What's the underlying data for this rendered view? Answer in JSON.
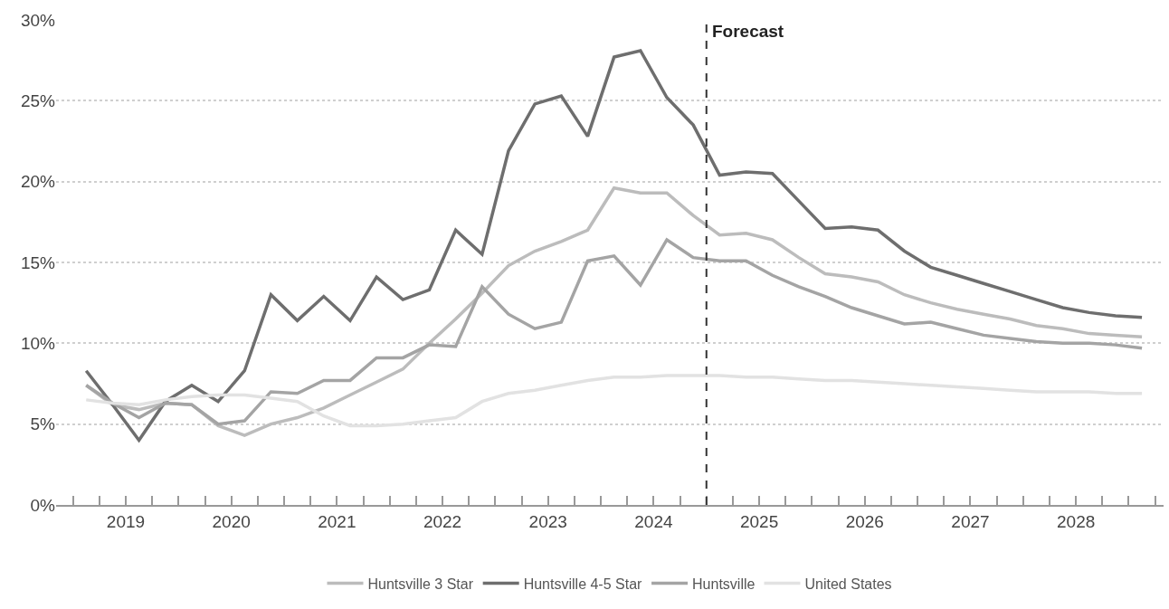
{
  "chart_data": {
    "type": "line",
    "x": [
      2019.125,
      2019.375,
      2019.625,
      2019.875,
      2020.125,
      2020.375,
      2020.625,
      2020.875,
      2021.125,
      2021.375,
      2021.625,
      2021.875,
      2022.125,
      2022.375,
      2022.625,
      2022.875,
      2023.125,
      2023.375,
      2023.625,
      2023.875,
      2024.125,
      2024.375,
      2024.625,
      2024.875,
      2025.125,
      2025.375,
      2025.625,
      2025.875,
      2026.125,
      2026.375,
      2026.625,
      2026.875,
      2027.125,
      2027.375,
      2027.625,
      2027.875,
      2028.125,
      2028.375,
      2028.625,
      2028.875,
      2029.125
    ],
    "series": [
      {
        "name": "Huntsville 3 Star",
        "color": "#bcbcbc",
        "values": [
          7.4,
          6.2,
          5.9,
          6.3,
          6.2,
          4.9,
          4.3,
          5.0,
          5.4,
          6.0,
          6.8,
          7.6,
          8.4,
          10.0,
          11.5,
          13.1,
          14.8,
          15.7,
          16.3,
          17.0,
          19.6,
          19.3,
          19.3,
          17.9,
          16.7,
          16.8,
          16.4,
          15.3,
          14.3,
          14.1,
          13.8,
          13.0,
          12.5,
          12.1,
          11.8,
          11.5,
          11.1,
          10.9,
          10.6,
          10.5,
          10.4
        ]
      },
      {
        "name": "Huntsville 4-5 Star",
        "color": "#6e6e6e",
        "values": [
          8.3,
          6.2,
          4.0,
          6.4,
          7.4,
          6.4,
          8.3,
          13.0,
          11.4,
          12.9,
          11.4,
          14.1,
          12.7,
          13.3,
          17.0,
          15.5,
          21.9,
          24.8,
          25.3,
          22.8,
          27.7,
          28.1,
          25.2,
          23.5,
          20.4,
          20.6,
          20.5,
          18.8,
          17.1,
          17.2,
          17.0,
          15.7,
          14.7,
          14.2,
          13.7,
          13.2,
          12.7,
          12.2,
          11.9,
          11.7,
          11.6
        ]
      },
      {
        "name": "Huntsville",
        "color": "#a4a4a4",
        "values": [
          7.4,
          6.3,
          5.4,
          6.3,
          6.2,
          5.0,
          5.2,
          7.0,
          6.9,
          7.7,
          7.7,
          9.1,
          9.1,
          9.9,
          9.8,
          13.5,
          11.8,
          10.9,
          11.3,
          15.1,
          15.4,
          13.6,
          16.4,
          15.3,
          15.1,
          15.1,
          14.2,
          13.5,
          12.9,
          12.2,
          11.7,
          11.2,
          11.3,
          10.9,
          10.5,
          10.3,
          10.1,
          10.0,
          10.0,
          9.9,
          9.7
        ]
      },
      {
        "name": "United States",
        "color": "#e2e2e2",
        "values": [
          6.5,
          6.3,
          6.2,
          6.5,
          6.7,
          6.8,
          6.8,
          6.6,
          6.4,
          5.5,
          4.9,
          4.9,
          5.0,
          5.2,
          5.4,
          6.4,
          6.9,
          7.1,
          7.4,
          7.7,
          7.9,
          7.9,
          8.0,
          8.0,
          8.0,
          7.9,
          7.9,
          7.8,
          7.7,
          7.7,
          7.6,
          7.5,
          7.4,
          7.3,
          7.2,
          7.1,
          7.0,
          7.0,
          7.0,
          6.9,
          6.9
        ]
      }
    ],
    "xlim": [
      2018.84,
      2029.33
    ],
    "xticks": [
      {
        "value": 2019.5,
        "label": "2019"
      },
      {
        "value": 2020.5,
        "label": "2020"
      },
      {
        "value": 2021.5,
        "label": "2021"
      },
      {
        "value": 2022.5,
        "label": "2022"
      },
      {
        "value": 2023.5,
        "label": "2023"
      },
      {
        "value": 2024.5,
        "label": "2024"
      },
      {
        "value": 2025.5,
        "label": "2025"
      },
      {
        "value": 2026.5,
        "label": "2026"
      },
      {
        "value": 2027.5,
        "label": "2027"
      },
      {
        "value": 2028.5,
        "label": "2028"
      }
    ],
    "ylim": [
      0,
      30
    ],
    "yticks": [
      {
        "value": 0,
        "label": "0%"
      },
      {
        "value": 5,
        "label": "5%"
      },
      {
        "value": 10,
        "label": "10%"
      },
      {
        "value": 15,
        "label": "15%"
      },
      {
        "value": 20,
        "label": "20%"
      },
      {
        "value": 25,
        "label": "25%"
      },
      {
        "value": 30,
        "label": "30%"
      }
    ],
    "ref_lines": [
      {
        "axis": "x",
        "value": 2025,
        "label": "Forecast",
        "color": "#333333",
        "line_style": "dashed"
      }
    ],
    "grid": "y",
    "legend": "bottom",
    "marker": "none",
    "line_style": "solid"
  }
}
